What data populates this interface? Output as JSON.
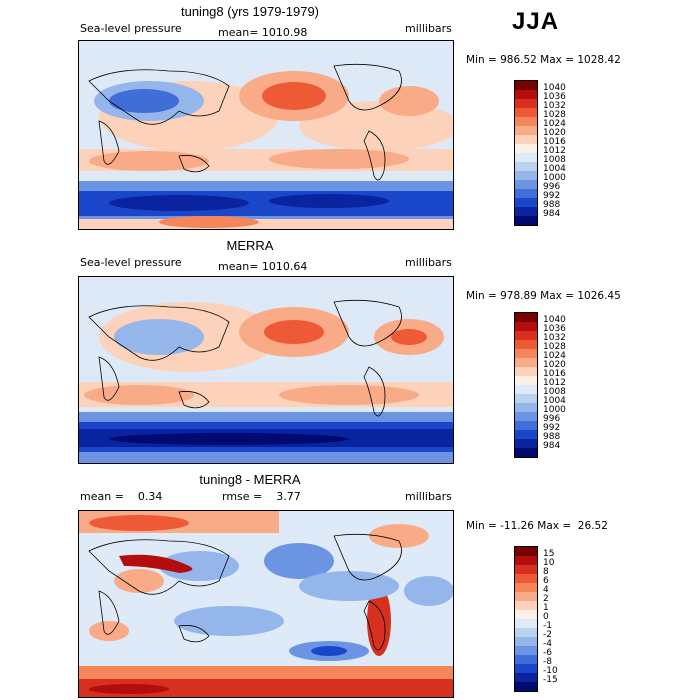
{
  "season": "JJA",
  "panels": [
    {
      "title": "tuning8 (yrs 1979-1979)",
      "left_text": "Sea-level pressure",
      "center_text": "mean= 1010.98",
      "right_text": "millibars",
      "minmax": "Min = 986.52 Max = 1028.42",
      "colorbar": {
        "labels": [
          "1040",
          "1036",
          "1032",
          "1028",
          "1024",
          "1020",
          "1016",
          "1012",
          "1008",
          "1004",
          "1000",
          "996",
          "992",
          "988",
          "984"
        ],
        "colors": [
          "#7a0000",
          "#b30d0d",
          "#d7301f",
          "#ee5a36",
          "#f5855a",
          "#f9aa86",
          "#fcd2ba",
          "#fdf0e6",
          "#deeaf7",
          "#bcd3f0",
          "#94b6ea",
          "#6b94e2",
          "#3f6ed9",
          "#1a47c9",
          "#0a24a0",
          "#000a70"
        ]
      }
    },
    {
      "title": "MERRA",
      "left_text": "Sea-level pressure",
      "center_text": "mean= 1010.64",
      "right_text": "millibars",
      "minmax": "Min = 978.89 Max = 1026.45",
      "colorbar": {
        "labels": [
          "1040",
          "1036",
          "1032",
          "1028",
          "1024",
          "1020",
          "1016",
          "1012",
          "1008",
          "1004",
          "1000",
          "996",
          "992",
          "988",
          "984"
        ],
        "colors": [
          "#7a0000",
          "#b30d0d",
          "#d7301f",
          "#ee5a36",
          "#f5855a",
          "#f9aa86",
          "#fcd2ba",
          "#fdf0e6",
          "#deeaf7",
          "#bcd3f0",
          "#94b6ea",
          "#6b94e2",
          "#3f6ed9",
          "#1a47c9",
          "#0a24a0",
          "#000a70"
        ]
      }
    },
    {
      "title": "tuning8 - MERRA",
      "left_text": "mean =    0.34",
      "center_text": "rmse =    3.77",
      "right_text": "millibars",
      "minmax": "Min = -11.26 Max =  26.52",
      "colorbar": {
        "labels": [
          "15",
          "10",
          "8",
          "6",
          "4",
          "2",
          "1",
          "0",
          "-1",
          "-2",
          "-4",
          "-6",
          "-8",
          "-10",
          "-15"
        ],
        "colors": [
          "#7a0000",
          "#b30d0d",
          "#d7301f",
          "#ee5a36",
          "#f5855a",
          "#f9aa86",
          "#fcd2ba",
          "#fdf0e6",
          "#deeaf7",
          "#bcd3f0",
          "#94b6ea",
          "#6b94e2",
          "#3f6ed9",
          "#1a47c9",
          "#0a24a0",
          "#000a70"
        ]
      }
    }
  ]
}
